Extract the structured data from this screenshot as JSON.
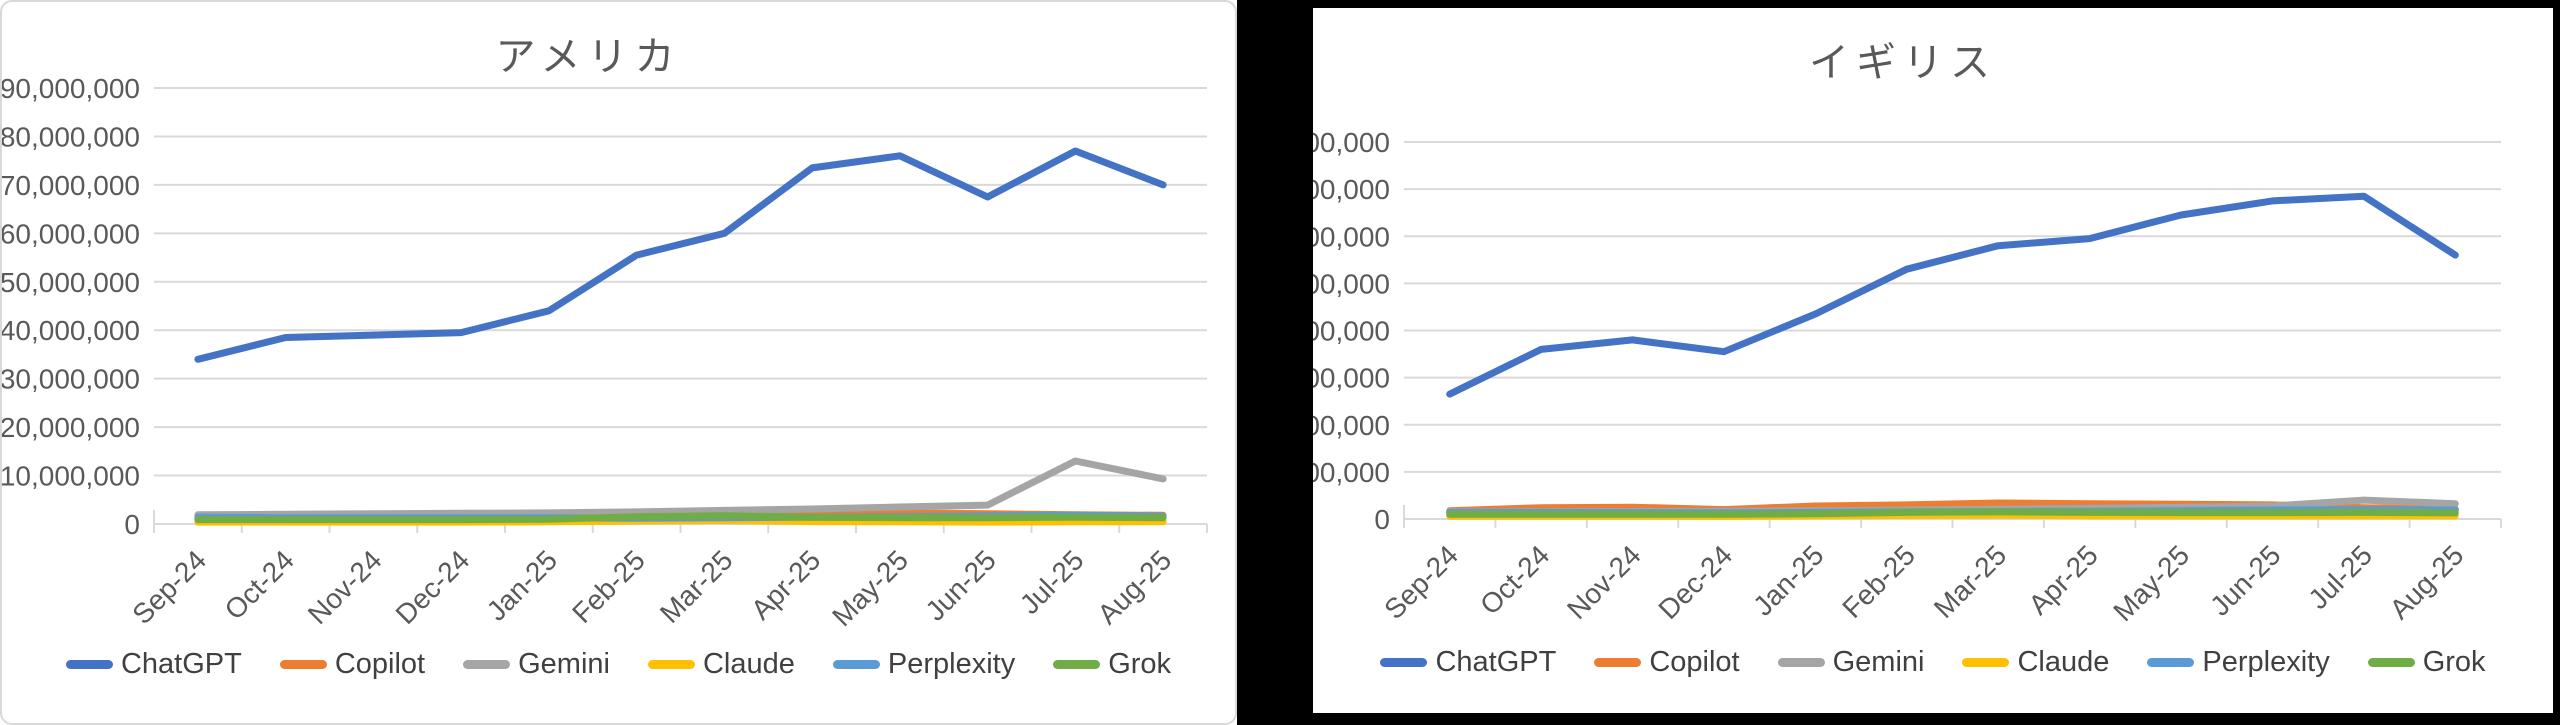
{
  "chart_data": [
    {
      "type": "line",
      "title": "アメリカ",
      "categories": [
        "Sep-24",
        "Oct-24",
        "Nov-24",
        "Dec-24",
        "Jan-25",
        "Feb-25",
        "Mar-25",
        "Apr-25",
        "May-25",
        "Jun-25",
        "Jul-25",
        "Aug-25"
      ],
      "series": [
        {
          "name": "ChatGPT",
          "color": "#4472C4",
          "values": [
            34000000,
            38500000,
            39000000,
            39500000,
            44000000,
            55500000,
            60000000,
            73500000,
            76000000,
            67500000,
            77000000,
            70000000
          ]
        },
        {
          "name": "Copilot",
          "color": "#ED7D31",
          "values": [
            1500000,
            1600000,
            1600000,
            1500000,
            1700000,
            1800000,
            2000000,
            2400000,
            2300000,
            2100000,
            1900000,
            1800000
          ]
        },
        {
          "name": "Gemini",
          "color": "#A5A5A5",
          "values": [
            1900000,
            2000000,
            2100000,
            2200000,
            2300000,
            2500000,
            2800000,
            3100000,
            3500000,
            3900000,
            13000000,
            9300000
          ]
        },
        {
          "name": "Claude",
          "color": "#FFC000",
          "values": [
            400000,
            400000,
            400000,
            400000,
            450000,
            600000,
            700000,
            500000,
            450000,
            400000,
            450000,
            450000
          ]
        },
        {
          "name": "Perplexity",
          "color": "#5B9BD5",
          "values": [
            1400000,
            1300000,
            1300000,
            1300000,
            1300000,
            1200000,
            1300000,
            1400000,
            1500000,
            1700000,
            1800000,
            1600000
          ]
        },
        {
          "name": "Grok",
          "color": "#70AD47",
          "values": [
            900000,
            900000,
            900000,
            900000,
            1000000,
            1500000,
            1700000,
            1400000,
            1300000,
            1300000,
            1400000,
            1300000
          ]
        }
      ],
      "xlabel": "",
      "ylabel": "",
      "ylim": [
        0,
        90000000
      ],
      "ytick_step": 10000000,
      "grid": true,
      "legend_position": "bottom"
    },
    {
      "type": "line",
      "title": "イギリス",
      "categories": [
        "Sep-24",
        "Oct-24",
        "Nov-24",
        "Dec-24",
        "Jan-25",
        "Feb-25",
        "Mar-25",
        "Apr-25",
        "May-25",
        "Jun-25",
        "Jul-25",
        "Aug-25"
      ],
      "series": [
        {
          "name": "ChatGPT",
          "color": "#4472C4",
          "values": [
            5300000,
            7200000,
            7600000,
            7100000,
            8700000,
            10600000,
            11600000,
            11900000,
            12900000,
            13500000,
            13700000,
            11200000
          ]
        },
        {
          "name": "Copilot",
          "color": "#ED7D31",
          "values": [
            350000,
            480000,
            500000,
            400000,
            550000,
            600000,
            680000,
            650000,
            630000,
            600000,
            480000,
            420000
          ]
        },
        {
          "name": "Gemini",
          "color": "#A5A5A5",
          "values": [
            300000,
            310000,
            320000,
            330000,
            350000,
            380000,
            420000,
            450000,
            500000,
            550000,
            800000,
            650000
          ]
        },
        {
          "name": "Claude",
          "color": "#FFC000",
          "values": [
            120000,
            120000,
            120000,
            110000,
            130000,
            150000,
            160000,
            140000,
            130000,
            130000,
            140000,
            130000
          ]
        },
        {
          "name": "Perplexity",
          "color": "#5B9BD5",
          "values": [
            280000,
            280000,
            270000,
            260000,
            280000,
            300000,
            320000,
            330000,
            350000,
            380000,
            400000,
            380000
          ]
        },
        {
          "name": "Grok",
          "color": "#70AD47",
          "values": [
            200000,
            200000,
            200000,
            200000,
            220000,
            280000,
            300000,
            280000,
            270000,
            270000,
            280000,
            260000
          ]
        }
      ],
      "xlabel": "",
      "ylabel": "",
      "ylim": [
        0,
        16000000
      ],
      "ytick_step": 2000000,
      "grid": true,
      "legend_position": "bottom"
    }
  ],
  "style_colors": {
    "grid": "#D9D9D9",
    "axis": "#D9D9D9",
    "tick_label": "#595959",
    "title": "#595959",
    "legend_text": "#404040",
    "frame": "#000000",
    "panel_border": "#D9D9D9"
  }
}
